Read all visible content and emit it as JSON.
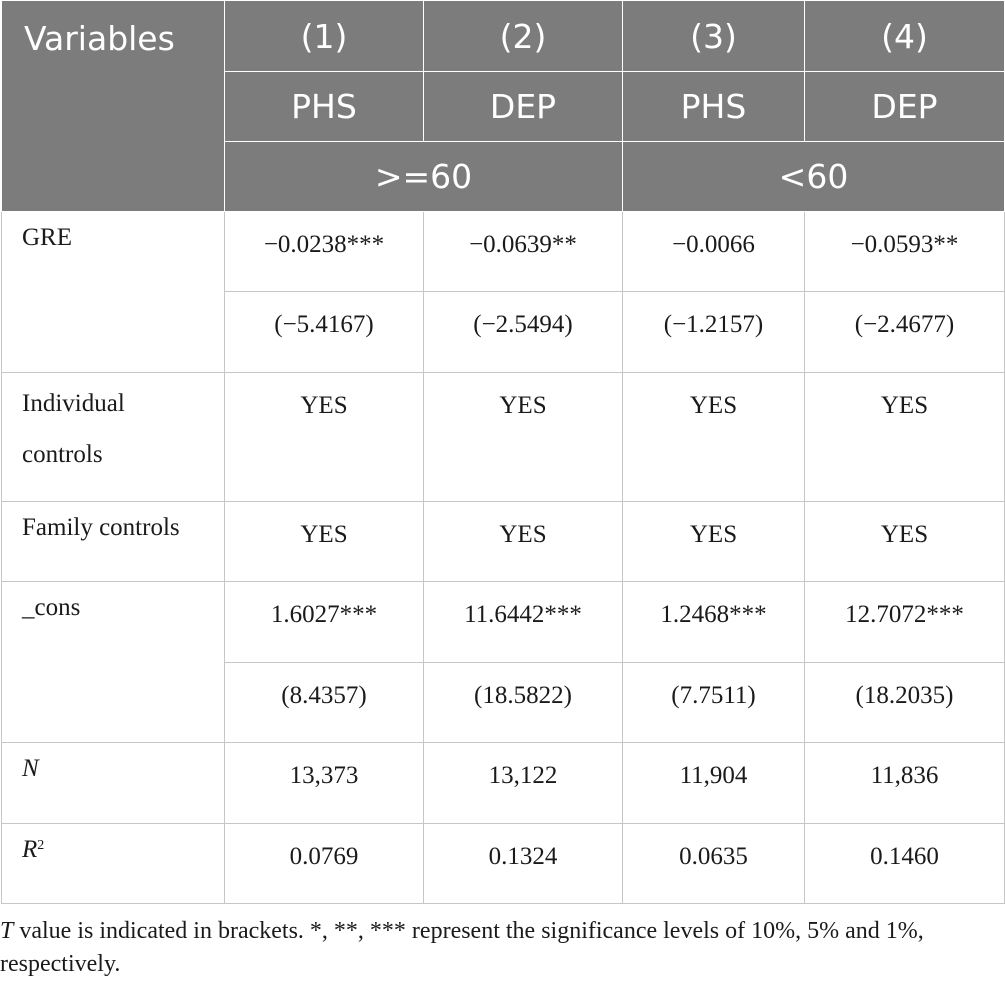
{
  "header": {
    "variables_label": "Variables",
    "col_numbers": [
      "(1)",
      "(2)",
      "(3)",
      "(4)"
    ],
    "col_vars": [
      "PHS",
      "DEP",
      "PHS",
      "DEP"
    ],
    "groups": [
      ">=60",
      "<60"
    ]
  },
  "rows": {
    "gre": {
      "label": "GRE",
      "coef": [
        "−0.0238***",
        "−0.0639**",
        "−0.0066",
        "−0.0593**"
      ],
      "tval": [
        "(−5.4167)",
        "(−2.5494)",
        "(−1.2157)",
        "(−2.4677)"
      ]
    },
    "individual": {
      "label_line1": "Individual",
      "label_line2": "controls",
      "values": [
        "YES",
        "YES",
        "YES",
        "YES"
      ]
    },
    "family": {
      "label": "Family controls",
      "values": [
        "YES",
        "YES",
        "YES",
        "YES"
      ]
    },
    "cons": {
      "label": "_cons",
      "coef": [
        "1.6027***",
        "11.6442***",
        "1.2468***",
        "12.7072***"
      ],
      "tval": [
        "(8.4357)",
        "(18.5822)",
        "(7.7511)",
        "(18.2035)"
      ]
    },
    "n": {
      "label": "N",
      "values": [
        "13,373",
        "13,122",
        "11,904",
        "11,836"
      ]
    },
    "r2": {
      "label": "R",
      "label_sup": "2",
      "values": [
        "0.0769",
        "0.1324",
        "0.0635",
        "0.1460"
      ]
    }
  },
  "note": {
    "t_italic": "T",
    "text": " value is indicated in brackets. *, **, *** represent the significance levels of 10%, 5% and 1%, respectively."
  }
}
